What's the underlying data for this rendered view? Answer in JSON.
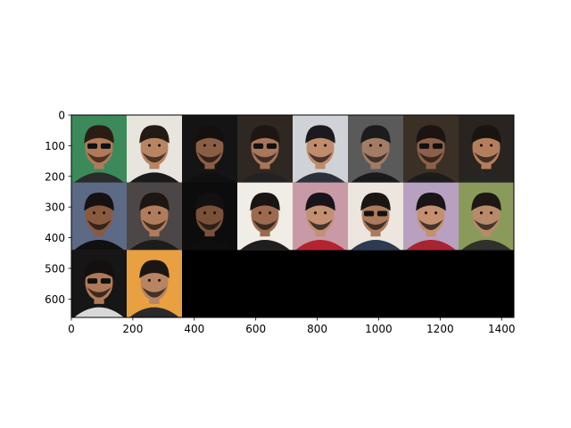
{
  "chart_data": {
    "type": "image_grid",
    "image_size": [
      1440,
      660
    ],
    "grid": {
      "rows": 3,
      "cols": 8,
      "tiles_filled": 18
    },
    "xlim": [
      0,
      1440
    ],
    "ylim": [
      660,
      0
    ],
    "xticks": [
      0,
      200,
      400,
      600,
      800,
      1000,
      1200,
      1400
    ],
    "yticks": [
      0,
      100,
      200,
      300,
      400,
      500,
      600
    ],
    "empty_fill": "#000000",
    "tiles": [
      {
        "row": 0,
        "col": 0,
        "bg": "#3c8a5a",
        "skin": "#b27a58",
        "hair": "#2a1d16",
        "shirt": "#2b2b2b",
        "sunglasses": true
      },
      {
        "row": 0,
        "col": 1,
        "bg": "#e8e4de",
        "skin": "#b88462",
        "hair": "#241a14",
        "shirt": "#1a1a1a",
        "sunglasses": false
      },
      {
        "row": 0,
        "col": 2,
        "bg": "#141414",
        "skin": "#8a5e44",
        "hair": "#151010",
        "shirt": "#101010",
        "sunglasses": false
      },
      {
        "row": 0,
        "col": 3,
        "bg": "#2e2722",
        "skin": "#a8765a",
        "hair": "#1e1612",
        "shirt": "#222222",
        "sunglasses": true
      },
      {
        "row": 0,
        "col": 4,
        "bg": "#cfd3d8",
        "skin": "#c08c6c",
        "hair": "#1c1a1c",
        "shirt": "#2c3038",
        "sunglasses": false
      },
      {
        "row": 0,
        "col": 5,
        "bg": "#5a5a5a",
        "skin": "#a37c66",
        "hair": "#1c1c1c",
        "shirt": "#1a1a1a",
        "sunglasses": false
      },
      {
        "row": 0,
        "col": 6,
        "bg": "#3a3026",
        "skin": "#8c6048",
        "hair": "#1c1410",
        "shirt": "#1c1c1c",
        "sunglasses": true
      },
      {
        "row": 0,
        "col": 7,
        "bg": "#2a2420",
        "skin": "#b47e5c",
        "hair": "#1a1410",
        "shirt": "#262626",
        "sunglasses": false
      },
      {
        "row": 1,
        "col": 0,
        "bg": "#5c6a86",
        "skin": "#8a5a40",
        "hair": "#161212",
        "shirt": "#101010",
        "sunglasses": false
      },
      {
        "row": 1,
        "col": 1,
        "bg": "#4c4646",
        "skin": "#b07c5c",
        "hair": "#1e1612",
        "shirt": "#1c1c1c",
        "sunglasses": false
      },
      {
        "row": 1,
        "col": 2,
        "bg": "#0c0c0c",
        "skin": "#7a5038",
        "hair": "#121010",
        "shirt": "#0e0e0e",
        "sunglasses": false
      },
      {
        "row": 1,
        "col": 3,
        "bg": "#f0ece6",
        "skin": "#9c6a4e",
        "hair": "#1a1412",
        "shirt": "#1e1e1e",
        "sunglasses": false
      },
      {
        "row": 1,
        "col": 4,
        "bg": "#c89aa6",
        "skin": "#c49072",
        "hair": "#18141a",
        "shirt": "#b42430",
        "sunglasses": false
      },
      {
        "row": 1,
        "col": 5,
        "bg": "#ece6de",
        "skin": "#ad7a5c",
        "hair": "#1a1614",
        "shirt": "#2c3a52",
        "sunglasses": true
      },
      {
        "row": 1,
        "col": 6,
        "bg": "#b8a0c0",
        "skin": "#c49070",
        "hair": "#1a1418",
        "shirt": "#a82430",
        "sunglasses": false
      },
      {
        "row": 1,
        "col": 7,
        "bg": "#8a9a5a",
        "skin": "#b88a6a",
        "hair": "#1e1814",
        "shirt": "#30302c",
        "sunglasses": false
      },
      {
        "row": 2,
        "col": 0,
        "bg": "#161616",
        "skin": "#b07a58",
        "hair": "#141010",
        "shirt": "#d8d8d8",
        "sunglasses": true
      },
      {
        "row": 2,
        "col": 1,
        "bg": "#e8a040",
        "skin": "#b88462",
        "hair": "#1c1612",
        "shirt": "#2a2a2a",
        "sunglasses": false
      }
    ]
  }
}
